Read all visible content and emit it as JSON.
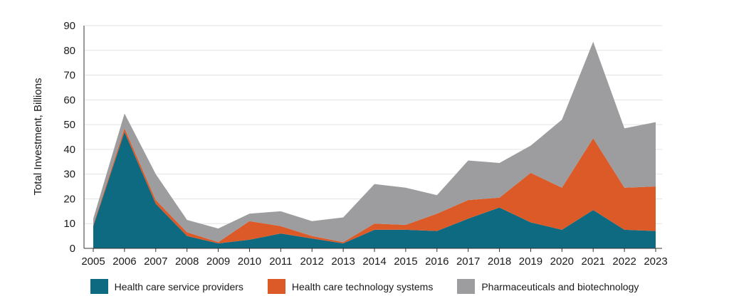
{
  "chart_data": {
    "type": "area",
    "stacked": true,
    "ylabel": "Total Investment, Billions",
    "xlabel": "",
    "ylim": [
      0,
      90
    ],
    "yticks": [
      0,
      10,
      20,
      30,
      40,
      50,
      60,
      70,
      80,
      90
    ],
    "grid": true,
    "legend_position": "bottom",
    "x": [
      "2005",
      "2006",
      "2007",
      "2008",
      "2009",
      "2010",
      "2011",
      "2012",
      "2013",
      "2014",
      "2015",
      "2016",
      "2017",
      "2018",
      "2019",
      "2020",
      "2021",
      "2022",
      "2023"
    ],
    "series": [
      {
        "name": "Health care service providers",
        "color": "#0e6a80",
        "values": [
          9,
          47,
          18,
          5,
          2,
          3.5,
          6,
          4,
          2,
          7.5,
          7.5,
          7,
          12,
          16.5,
          10.5,
          7.5,
          15.5,
          7.5,
          7
        ]
      },
      {
        "name": "Health care technology systems",
        "color": "#db5a27",
        "values": [
          0.5,
          1.5,
          1.5,
          1.5,
          0.5,
          7.5,
          3,
          1,
          0.5,
          2.5,
          2,
          7,
          7.5,
          4,
          20,
          17,
          29,
          17,
          18
        ]
      },
      {
        "name": "Pharmaceuticals and biotechnology",
        "color": "#9d9da0",
        "values": [
          2.5,
          6,
          10.5,
          5,
          5.5,
          3,
          6,
          6,
          10,
          16,
          15,
          7.5,
          16,
          14,
          11,
          27.5,
          39,
          24,
          26
        ]
      }
    ]
  }
}
